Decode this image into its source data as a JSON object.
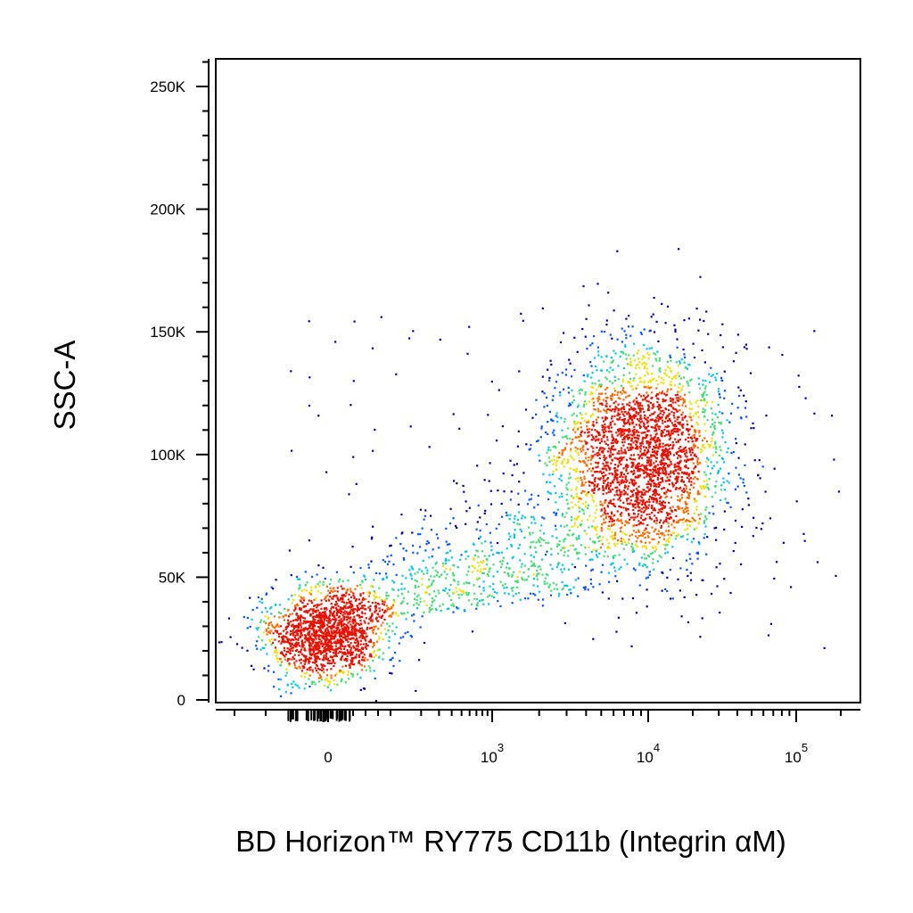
{
  "chart_data": {
    "type": "scatter",
    "subtype": "flow-cytometry-density-dot-plot",
    "xlabel": "BD Horizon™ RY775 CD11b (Integrin αM)",
    "ylabel": "SSC-A",
    "x_scale": "biexponential",
    "y_scale": "linear",
    "xlim": [
      -300,
      150000
    ],
    "ylim": [
      0,
      262144
    ],
    "x_ticks": [
      {
        "value": 0,
        "base": "0",
        "exp": ""
      },
      {
        "value": 1000,
        "base": "10",
        "exp": "3"
      },
      {
        "value": 10000,
        "base": "10",
        "exp": "4"
      },
      {
        "value": 100000,
        "base": "10",
        "exp": "5"
      }
    ],
    "y_ticks": [
      {
        "value": 0,
        "label": "0"
      },
      {
        "value": 50000,
        "label": "50K"
      },
      {
        "value": 100000,
        "label": "100K"
      },
      {
        "value": 150000,
        "label": "150K"
      },
      {
        "value": 200000,
        "label": "200K"
      },
      {
        "value": 250000,
        "label": "250K"
      }
    ],
    "grid": false,
    "legend": "none",
    "density_colormap": [
      "#0000a0",
      "#0055ff",
      "#00c8e6",
      "#40e070",
      "#f0e000",
      "#ff6a00",
      "#e81000"
    ],
    "populations": [
      {
        "x_center": 0,
        "y_center": 27000,
        "x_spread": 40,
        "y_spread": 9000,
        "fraction": 0.3
      },
      {
        "x_center": 9000,
        "y_center": 100000,
        "x_spread_log": 0.28,
        "y_spread": 22000,
        "fraction": 0.55
      },
      {
        "x_range": [
          100,
          5000
        ],
        "y_range": [
          25000,
          150000
        ],
        "fraction": 0.15
      }
    ]
  }
}
